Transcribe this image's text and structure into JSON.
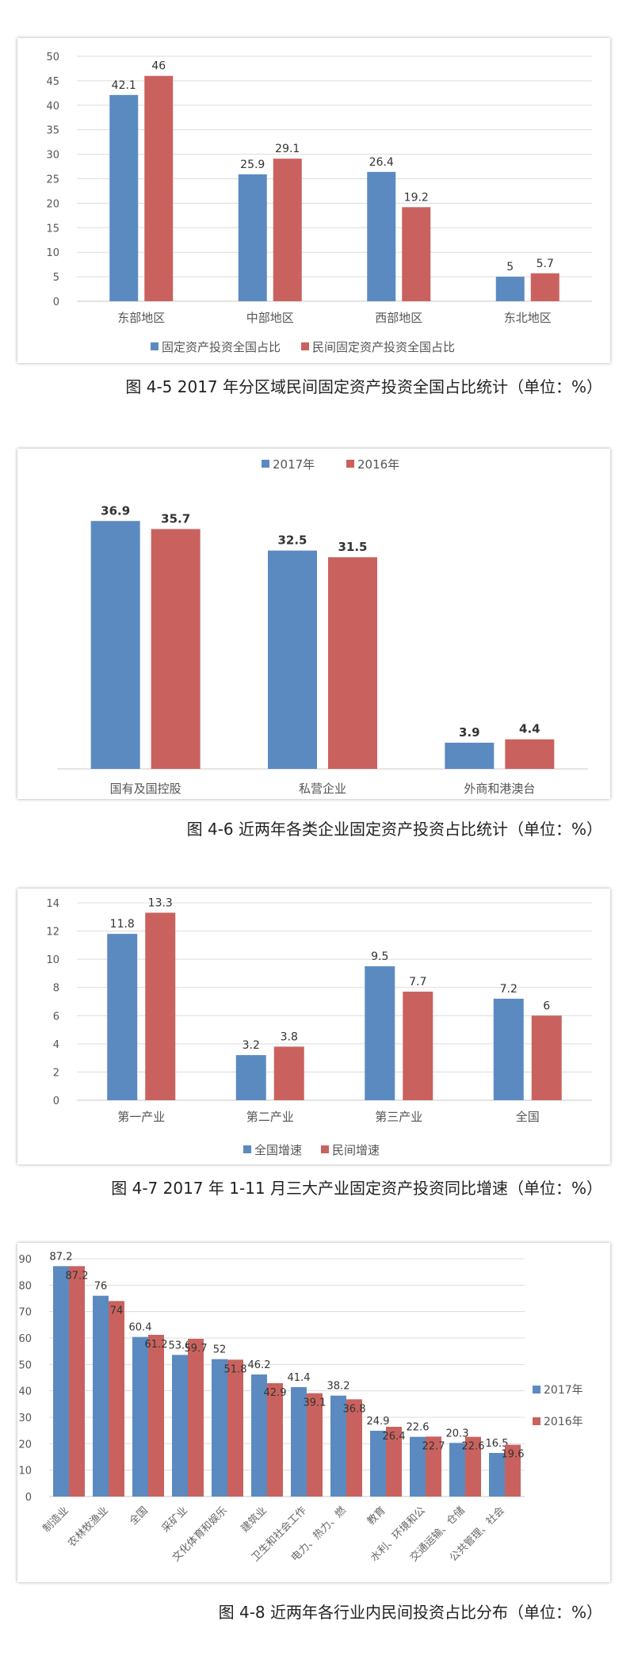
{
  "charts": [
    {
      "caption": "图 4-5 2017 年分区域民间固定资产投资全国占比统计（单位：%）",
      "chart_data": {
        "type": "bar",
        "categories": [
          "东部地区",
          "中部地区",
          "西部地区",
          "东北地区"
        ],
        "series": [
          {
            "name": "固定资产投资全国占比",
            "values": [
              42.1,
              25.9,
              26.4,
              5
            ],
            "color": "#5b8ac1"
          },
          {
            "name": "民间固定资产投资全国占比",
            "values": [
              46,
              29.1,
              19.2,
              5.7
            ],
            "color": "#c9625e"
          }
        ],
        "ylim": [
          0,
          50
        ],
        "yticks": [
          0,
          5,
          10,
          15,
          20,
          25,
          30,
          35,
          40,
          45,
          50
        ],
        "legend_position": "bottom",
        "grid": true
      }
    },
    {
      "caption": "图 4-6 近两年各类企业固定资产投资占比统计（单位：%）",
      "chart_data": {
        "type": "bar",
        "categories": [
          "国有及国控股",
          "私营企业",
          "外商和港澳台"
        ],
        "series": [
          {
            "name": "2017年",
            "values": [
              36.9,
              32.5,
              3.9
            ],
            "color": "#5b8ac1"
          },
          {
            "name": "2016年",
            "values": [
              35.7,
              31.5,
              4.4
            ],
            "color": "#c9625e"
          }
        ],
        "ylim": [
          0,
          40
        ],
        "legend_position": "top",
        "grid": false
      }
    },
    {
      "caption": "图 4-7 2017 年 1-11 月三大产业固定资产投资同比增速（单位：%）",
      "chart_data": {
        "type": "bar",
        "categories": [
          "第一产业",
          "第二产业",
          "第三产业",
          "全国"
        ],
        "series": [
          {
            "name": "全国增速",
            "values": [
              11.8,
              3.2,
              9.5,
              7.2
            ],
            "color": "#5b8ac1"
          },
          {
            "name": "民间增速",
            "values": [
              13.3,
              3.8,
              7.7,
              6
            ],
            "color": "#c9625e"
          }
        ],
        "ylim": [
          0,
          14
        ],
        "yticks": [
          0,
          2,
          4,
          6,
          8,
          10,
          12,
          14
        ],
        "legend_position": "bottom",
        "grid": true
      }
    },
    {
      "caption": "图 4-8 近两年各行业内民间投资占比分布（单位：%）",
      "chart_data": {
        "type": "bar",
        "categories": [
          "制造业",
          "农林牧渔业",
          "全国",
          "采矿业",
          "文化体育和娱乐",
          "建筑业",
          "卫生和社会工作",
          "电力、热力、燃",
          "教育",
          "水利、环境和公",
          "交通运输、仓储",
          "公共管理、社会"
        ],
        "series": [
          {
            "name": "2017年",
            "values": [
              87.2,
              76,
              60.4,
              53.6,
              52,
              46.2,
              41.4,
              38.2,
              24.9,
              22.6,
              20.3,
              16.5
            ],
            "color": "#5b8ac1"
          },
          {
            "name": "2016年",
            "values": [
              87.2,
              74,
              61.2,
              59.7,
              51.8,
              42.9,
              39.1,
              36.8,
              26.4,
              22.7,
              22.6,
              19.6
            ],
            "color": "#c9625e"
          }
        ],
        "ylim": [
          0,
          90
        ],
        "yticks": [
          0,
          10,
          20,
          30,
          40,
          50,
          60,
          70,
          80,
          90
        ],
        "legend_position": "right",
        "grid": true
      }
    }
  ]
}
